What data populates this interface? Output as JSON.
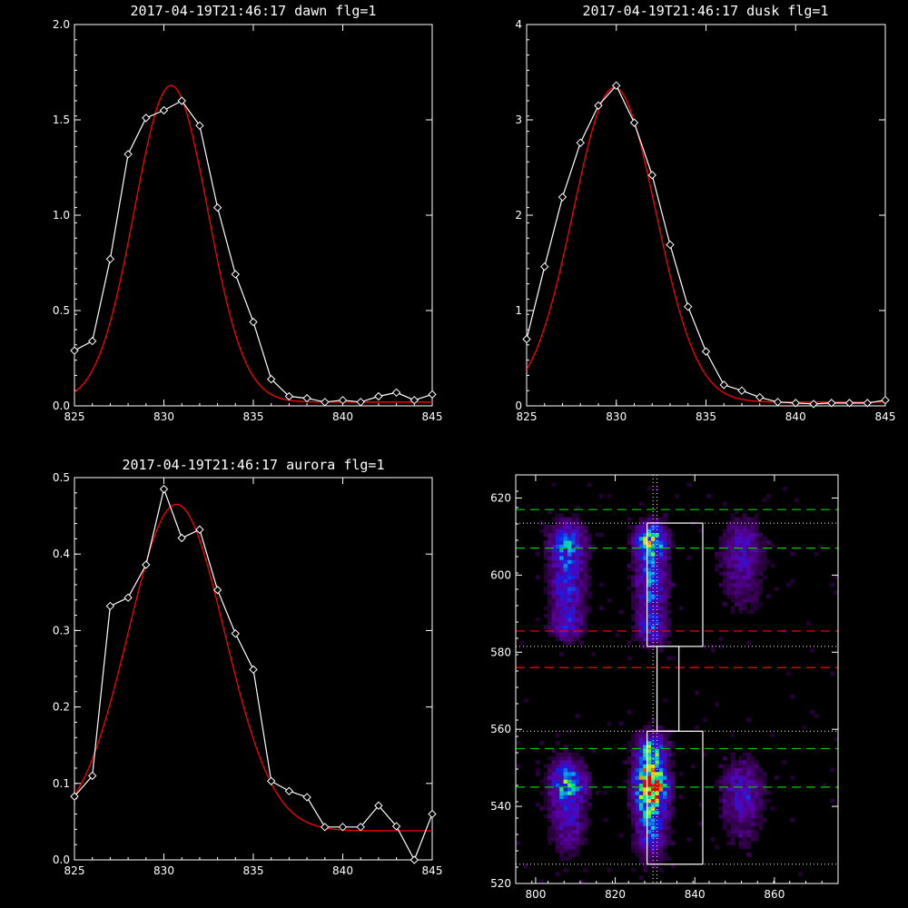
{
  "colors": {
    "background": "#000000",
    "axes": "#ffffff",
    "data_line": "#ffffff",
    "fit_line": "#ff0000",
    "guide_green": "#00cc00",
    "guide_red": "#ff0000",
    "guide_dotted": "#ffffff"
  },
  "chart_data": [
    {
      "type": "line",
      "title": "2017-04-19T21:46:17 dawn flg=1",
      "xlim": [
        825,
        845
      ],
      "ylim": [
        0,
        2.0
      ],
      "xticks": [
        "825",
        "830",
        "835",
        "840",
        "845"
      ],
      "yticks": [
        "0.0",
        "0.5",
        "1.0",
        "1.5",
        "2.0"
      ],
      "grid": false,
      "series": [
        {
          "kind": "data",
          "marker": "diamond",
          "color": "#ffffff",
          "x": [
            825,
            826,
            827,
            828,
            829,
            830,
            831,
            832,
            833,
            834,
            835,
            836,
            837,
            838,
            839,
            840,
            841,
            842,
            843,
            844,
            845
          ],
          "y": [
            0.29,
            0.34,
            0.77,
            1.32,
            1.51,
            1.55,
            1.6,
            1.47,
            1.04,
            0.69,
            0.44,
            0.14,
            0.05,
            0.04,
            0.02,
            0.03,
            0.02,
            0.05,
            0.07,
            0.03,
            0.06
          ]
        },
        {
          "kind": "fit",
          "color": "#ff0000",
          "model": "gaussian",
          "amplitude": 1.66,
          "center": 830.4,
          "sigma": 2.05,
          "offset": 0.02,
          "xrange": [
            825,
            845
          ]
        }
      ]
    },
    {
      "type": "line",
      "title": "2017-04-19T21:46:17 dusk flg=1",
      "xlim": [
        825,
        845
      ],
      "ylim": [
        0,
        4
      ],
      "xticks": [
        "825",
        "830",
        "835",
        "840",
        "845"
      ],
      "yticks": [
        "0",
        "1",
        "2",
        "3",
        "4"
      ],
      "grid": false,
      "series": [
        {
          "kind": "data",
          "marker": "diamond",
          "color": "#ffffff",
          "x": [
            825,
            826,
            827,
            828,
            829,
            830,
            831,
            832,
            833,
            834,
            835,
            836,
            837,
            838,
            839,
            840,
            841,
            842,
            843,
            844,
            845
          ],
          "y": [
            0.7,
            1.46,
            2.19,
            2.76,
            3.15,
            3.36,
            2.97,
            2.42,
            1.69,
            1.04,
            0.57,
            0.22,
            0.16,
            0.09,
            0.04,
            0.03,
            0.02,
            0.03,
            0.03,
            0.03,
            0.06
          ]
        },
        {
          "kind": "fit",
          "color": "#ff0000",
          "model": "gaussian",
          "amplitude": 3.3,
          "center": 829.9,
          "sigma": 2.3,
          "offset": 0.04,
          "xrange": [
            825,
            845
          ]
        }
      ]
    },
    {
      "type": "line",
      "title": "2017-04-19T21:46:17 aurora flg=1",
      "xlim": [
        825,
        845
      ],
      "ylim": [
        0,
        0.5
      ],
      "xticks": [
        "825",
        "830",
        "835",
        "840",
        "845"
      ],
      "yticks": [
        "0.0",
        "0.1",
        "0.2",
        "0.3",
        "0.4",
        "0.5"
      ],
      "grid": false,
      "series": [
        {
          "kind": "data",
          "marker": "diamond",
          "color": "#ffffff",
          "x": [
            825,
            826,
            827,
            828,
            829,
            830,
            831,
            832,
            833,
            834,
            835,
            836,
            837,
            838,
            839,
            840,
            841,
            842,
            843,
            844,
            845
          ],
          "y": [
            0.083,
            0.11,
            0.332,
            0.343,
            0.386,
            0.485,
            0.421,
            0.432,
            0.353,
            0.296,
            0.249,
            0.103,
            0.09,
            0.082,
            0.043,
            0.043,
            0.043,
            0.071,
            0.044,
            0.0,
            0.06
          ]
        },
        {
          "kind": "fit",
          "color": "#ff0000",
          "model": "gaussian",
          "amplitude": 0.427,
          "center": 830.7,
          "sigma": 2.7,
          "offset": 0.038,
          "xrange": [
            825,
            845
          ]
        }
      ]
    },
    {
      "type": "heatmap",
      "title": "",
      "xlim": [
        795,
        876
      ],
      "ylim": [
        520,
        626
      ],
      "xticks": [
        "800",
        "820",
        "840",
        "860"
      ],
      "yticks": [
        "520",
        "540",
        "560",
        "580",
        "600",
        "620"
      ],
      "colormap": "rainbow",
      "emission_columns": [
        {
          "x_center": 808,
          "x_width": 3.0,
          "bands": [
            {
              "y": 608,
              "sigma": 4,
              "level": 0.45
            },
            {
              "y": 597,
              "sigma": 5,
              "level": 0.35
            },
            {
              "y": 587,
              "sigma": 3,
              "level": 0.25
            },
            {
              "y": 546,
              "sigma": 4,
              "level": 0.55
            },
            {
              "y": 535,
              "sigma": 5,
              "level": 0.25
            }
          ]
        },
        {
          "x_center": 829,
          "x_width": 2.6,
          "bands": [
            {
              "y": 609,
              "sigma": 3,
              "level": 0.65
            },
            {
              "y": 598,
              "sigma": 6,
              "level": 0.45
            },
            {
              "y": 586,
              "sigma": 3,
              "level": 0.3
            },
            {
              "y": 546,
              "sigma": 4,
              "level": 1.0
            },
            {
              "y": 536,
              "sigma": 6,
              "level": 0.45
            },
            {
              "y": 555,
              "sigma": 3,
              "level": 0.5
            }
          ]
        },
        {
          "x_center": 852,
          "x_width": 3.5,
          "bands": [
            {
              "y": 608,
              "sigma": 5,
              "level": 0.22
            },
            {
              "y": 598,
              "sigma": 6,
              "level": 0.15
            },
            {
              "y": 545,
              "sigma": 5,
              "level": 0.25
            },
            {
              "y": 536,
              "sigma": 6,
              "level": 0.12
            }
          ]
        }
      ],
      "guides": {
        "green_dashed_y": [
          617,
          607,
          555,
          545
        ],
        "red_dashed_y": [
          585.5,
          576
        ],
        "dotted_y": [
          613.5,
          581.5,
          559.5,
          525
        ],
        "dotted_x": [
          829.5,
          830.5
        ]
      },
      "boxes": [
        {
          "x": [
            828,
            842
          ],
          "y": [
            581.5,
            613.5
          ]
        },
        {
          "x": [
            830.5,
            836
          ],
          "y": [
            559.5,
            581.5
          ]
        },
        {
          "x": [
            828,
            842
          ],
          "y": [
            525,
            559.5
          ]
        }
      ]
    }
  ]
}
